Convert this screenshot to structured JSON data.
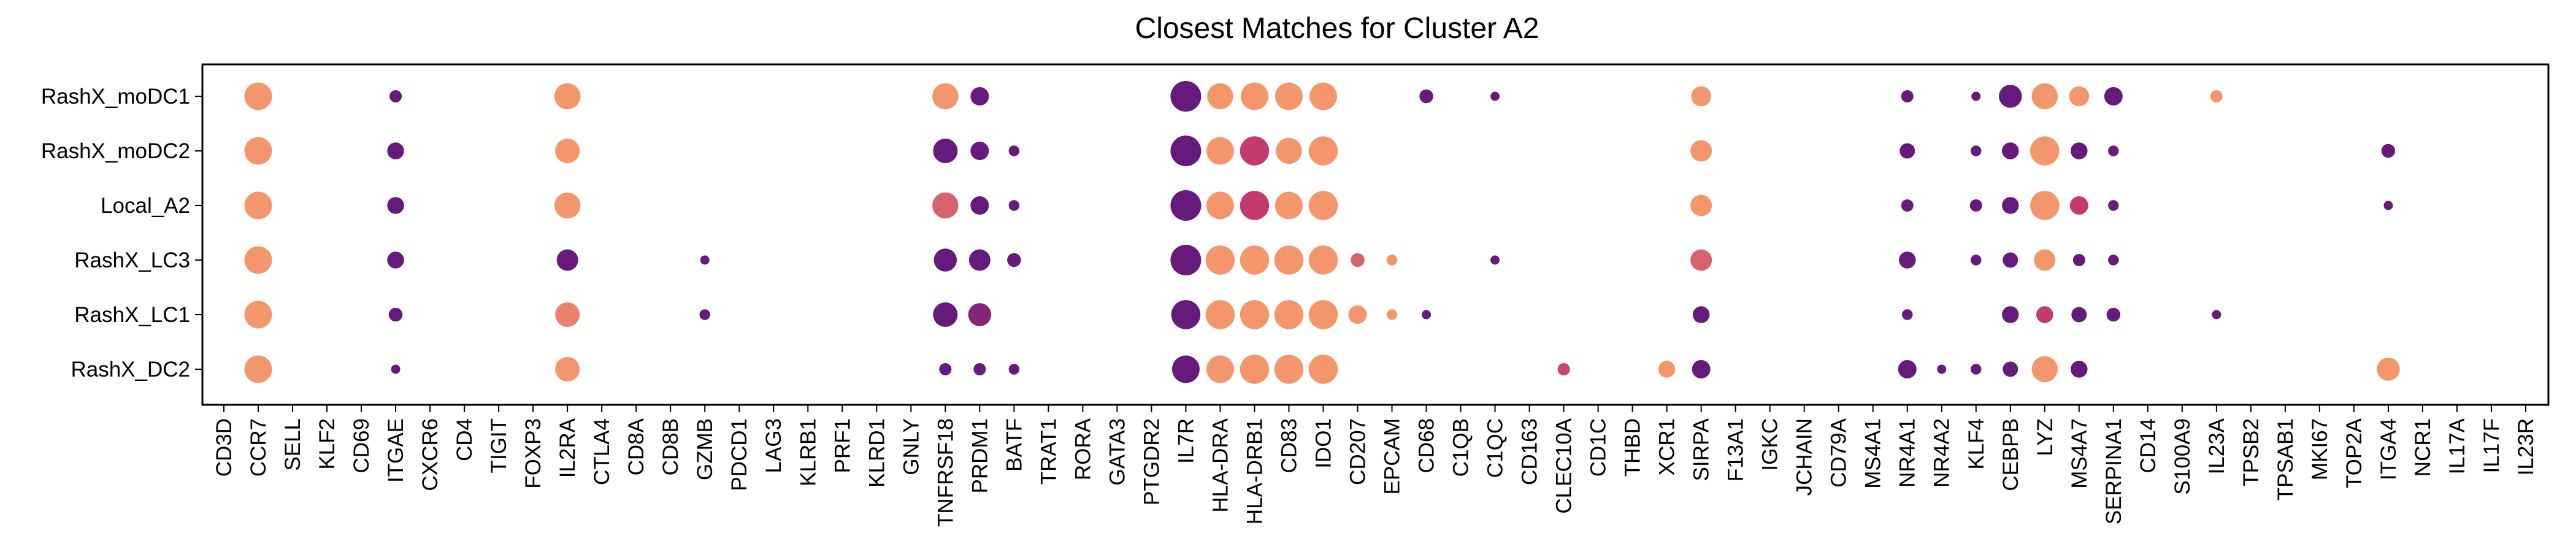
{
  "chart_data": {
    "type": "dotplot",
    "title": "Closest Matches for Cluster A2",
    "xlabel": "",
    "ylabel": "",
    "grid": false,
    "legend": "none",
    "genes": [
      "CD3D",
      "CCR7",
      "SELL",
      "KLF2",
      "CD69",
      "ITGAE",
      "CXCR6",
      "CD4",
      "TIGIT",
      "FOXP3",
      "IL2RA",
      "CTLA4",
      "CD8A",
      "CD8B",
      "GZMB",
      "PDCD1",
      "LAG3",
      "KLRB1",
      "PRF1",
      "KLRD1",
      "GNLY",
      "TNFRSF18",
      "PRDM1",
      "BATF",
      "TRAT1",
      "RORA",
      "GATA3",
      "PTGDR2",
      "IL7R",
      "HLA-DRA",
      "HLA-DRB1",
      "CD83",
      "IDO1",
      "CD207",
      "EPCAM",
      "CD68",
      "C1QB",
      "C1QC",
      "CD163",
      "CLEC10A",
      "CD1C",
      "THBD",
      "XCR1",
      "SIRPA",
      "F13A1",
      "IGKC",
      "JCHAIN",
      "CD79A",
      "MS4A1",
      "NR4A1",
      "NR4A2",
      "KLF4",
      "CEBPB",
      "LYZ",
      "MS4A7",
      "SERPINA1",
      "CD14",
      "S100A9",
      "IL23A",
      "TPSB2",
      "TPSAB1",
      "MKI67",
      "TOP2A",
      "ITGA4",
      "NCR1",
      "IL17A",
      "IL17F",
      "IL23R"
    ],
    "rows": [
      "RashX_moDC1",
      "RashX_moDC2",
      "Local_A2",
      "RashX_LC3",
      "RashX_LC1",
      "RashX_DC2"
    ],
    "color_scale": {
      "low": "#5b167e",
      "mid": "#c33b6e",
      "high": "#f9a06c"
    },
    "points": [
      {
        "row": "RashX_moDC1",
        "gene": "CCR7",
        "size": 0.9,
        "color": 0.95
      },
      {
        "row": "RashX_moDC1",
        "gene": "ITGAE",
        "size": 0.4,
        "color": 0.05
      },
      {
        "row": "RashX_moDC1",
        "gene": "IL2RA",
        "size": 0.85,
        "color": 0.95
      },
      {
        "row": "RashX_moDC1",
        "gene": "TNFRSF18",
        "size": 0.85,
        "color": 0.95
      },
      {
        "row": "RashX_moDC1",
        "gene": "PRDM1",
        "size": 0.6,
        "color": 0.05
      },
      {
        "row": "RashX_moDC1",
        "gene": "IL7R",
        "size": 1.0,
        "color": 0.05
      },
      {
        "row": "RashX_moDC1",
        "gene": "HLA-DRA",
        "size": 0.85,
        "color": 0.95
      },
      {
        "row": "RashX_moDC1",
        "gene": "HLA-DRB1",
        "size": 0.9,
        "color": 0.95
      },
      {
        "row": "RashX_moDC1",
        "gene": "CD83",
        "size": 0.9,
        "color": 0.95
      },
      {
        "row": "RashX_moDC1",
        "gene": "IDO1",
        "size": 0.9,
        "color": 0.95
      },
      {
        "row": "RashX_moDC1",
        "gene": "CD68",
        "size": 0.45,
        "color": 0.05
      },
      {
        "row": "RashX_moDC1",
        "gene": "C1QC",
        "size": 0.3,
        "color": 0.05
      },
      {
        "row": "RashX_moDC1",
        "gene": "SIRPA",
        "size": 0.65,
        "color": 0.95
      },
      {
        "row": "RashX_moDC1",
        "gene": "NR4A1",
        "size": 0.4,
        "color": 0.05
      },
      {
        "row": "RashX_moDC1",
        "gene": "KLF4",
        "size": 0.3,
        "color": 0.05
      },
      {
        "row": "RashX_moDC1",
        "gene": "CEBPB",
        "size": 0.75,
        "color": 0.05
      },
      {
        "row": "RashX_moDC1",
        "gene": "LYZ",
        "size": 0.85,
        "color": 0.95
      },
      {
        "row": "RashX_moDC1",
        "gene": "MS4A7",
        "size": 0.65,
        "color": 0.95
      },
      {
        "row": "RashX_moDC1",
        "gene": "SERPINA1",
        "size": 0.6,
        "color": 0.05
      },
      {
        "row": "RashX_moDC1",
        "gene": "IL23A",
        "size": 0.4,
        "color": 0.95
      },
      {
        "row": "RashX_moDC2",
        "gene": "CCR7",
        "size": 0.9,
        "color": 0.95
      },
      {
        "row": "RashX_moDC2",
        "gene": "ITGAE",
        "size": 0.55,
        "color": 0.05
      },
      {
        "row": "RashX_moDC2",
        "gene": "IL2RA",
        "size": 0.8,
        "color": 0.95
      },
      {
        "row": "RashX_moDC2",
        "gene": "TNFRSF18",
        "size": 0.8,
        "color": 0.05
      },
      {
        "row": "RashX_moDC2",
        "gene": "PRDM1",
        "size": 0.6,
        "color": 0.05
      },
      {
        "row": "RashX_moDC2",
        "gene": "BATF",
        "size": 0.35,
        "color": 0.05
      },
      {
        "row": "RashX_moDC2",
        "gene": "IL7R",
        "size": 1.0,
        "color": 0.05
      },
      {
        "row": "RashX_moDC2",
        "gene": "HLA-DRA",
        "size": 0.9,
        "color": 0.95
      },
      {
        "row": "RashX_moDC2",
        "gene": "HLA-DRB1",
        "size": 0.95,
        "color": 0.5
      },
      {
        "row": "RashX_moDC2",
        "gene": "CD83",
        "size": 0.85,
        "color": 0.95
      },
      {
        "row": "RashX_moDC2",
        "gene": "IDO1",
        "size": 0.95,
        "color": 0.95
      },
      {
        "row": "RashX_moDC2",
        "gene": "SIRPA",
        "size": 0.7,
        "color": 0.95
      },
      {
        "row": "RashX_moDC2",
        "gene": "NR4A1",
        "size": 0.5,
        "color": 0.05
      },
      {
        "row": "RashX_moDC2",
        "gene": "KLF4",
        "size": 0.35,
        "color": 0.05
      },
      {
        "row": "RashX_moDC2",
        "gene": "CEBPB",
        "size": 0.55,
        "color": 0.05
      },
      {
        "row": "RashX_moDC2",
        "gene": "LYZ",
        "size": 0.95,
        "color": 0.95
      },
      {
        "row": "RashX_moDC2",
        "gene": "MS4A7",
        "size": 0.55,
        "color": 0.05
      },
      {
        "row": "RashX_moDC2",
        "gene": "SERPINA1",
        "size": 0.35,
        "color": 0.05
      },
      {
        "row": "RashX_moDC2",
        "gene": "ITGA4",
        "size": 0.45,
        "color": 0.05
      },
      {
        "row": "Local_A2",
        "gene": "CCR7",
        "size": 0.9,
        "color": 0.95
      },
      {
        "row": "Local_A2",
        "gene": "ITGAE",
        "size": 0.55,
        "color": 0.05
      },
      {
        "row": "Local_A2",
        "gene": "IL2RA",
        "size": 0.85,
        "color": 0.95
      },
      {
        "row": "Local_A2",
        "gene": "TNFRSF18",
        "size": 0.85,
        "color": 0.7
      },
      {
        "row": "Local_A2",
        "gene": "PRDM1",
        "size": 0.6,
        "color": 0.05
      },
      {
        "row": "Local_A2",
        "gene": "BATF",
        "size": 0.35,
        "color": 0.05
      },
      {
        "row": "Local_A2",
        "gene": "IL7R",
        "size": 1.0,
        "color": 0.05
      },
      {
        "row": "Local_A2",
        "gene": "HLA-DRA",
        "size": 0.9,
        "color": 0.95
      },
      {
        "row": "Local_A2",
        "gene": "HLA-DRB1",
        "size": 0.95,
        "color": 0.5
      },
      {
        "row": "Local_A2",
        "gene": "CD83",
        "size": 0.9,
        "color": 0.95
      },
      {
        "row": "Local_A2",
        "gene": "IDO1",
        "size": 0.95,
        "color": 0.95
      },
      {
        "row": "Local_A2",
        "gene": "SIRPA",
        "size": 0.7,
        "color": 0.95
      },
      {
        "row": "Local_A2",
        "gene": "NR4A1",
        "size": 0.4,
        "color": 0.05
      },
      {
        "row": "Local_A2",
        "gene": "KLF4",
        "size": 0.4,
        "color": 0.05
      },
      {
        "row": "Local_A2",
        "gene": "CEBPB",
        "size": 0.55,
        "color": 0.05
      },
      {
        "row": "Local_A2",
        "gene": "LYZ",
        "size": 0.95,
        "color": 0.95
      },
      {
        "row": "Local_A2",
        "gene": "MS4A7",
        "size": 0.6,
        "color": 0.5
      },
      {
        "row": "Local_A2",
        "gene": "SERPINA1",
        "size": 0.35,
        "color": 0.05
      },
      {
        "row": "Local_A2",
        "gene": "ITGA4",
        "size": 0.3,
        "color": 0.05
      },
      {
        "row": "RashX_LC3",
        "gene": "CCR7",
        "size": 0.9,
        "color": 0.95
      },
      {
        "row": "RashX_LC3",
        "gene": "ITGAE",
        "size": 0.55,
        "color": 0.05
      },
      {
        "row": "RashX_LC3",
        "gene": "IL2RA",
        "size": 0.7,
        "color": 0.05
      },
      {
        "row": "RashX_LC3",
        "gene": "GZMB",
        "size": 0.3,
        "color": 0.05
      },
      {
        "row": "RashX_LC3",
        "gene": "TNFRSF18",
        "size": 0.75,
        "color": 0.05
      },
      {
        "row": "RashX_LC3",
        "gene": "PRDM1",
        "size": 0.7,
        "color": 0.05
      },
      {
        "row": "RashX_LC3",
        "gene": "BATF",
        "size": 0.45,
        "color": 0.05
      },
      {
        "row": "RashX_LC3",
        "gene": "IL7R",
        "size": 1.0,
        "color": 0.05
      },
      {
        "row": "RashX_LC3",
        "gene": "HLA-DRA",
        "size": 0.95,
        "color": 0.95
      },
      {
        "row": "RashX_LC3",
        "gene": "HLA-DRB1",
        "size": 0.95,
        "color": 0.95
      },
      {
        "row": "RashX_LC3",
        "gene": "CD83",
        "size": 0.95,
        "color": 0.95
      },
      {
        "row": "RashX_LC3",
        "gene": "IDO1",
        "size": 0.95,
        "color": 0.95
      },
      {
        "row": "RashX_LC3",
        "gene": "CD207",
        "size": 0.45,
        "color": 0.7
      },
      {
        "row": "RashX_LC3",
        "gene": "EPCAM",
        "size": 0.35,
        "color": 0.95
      },
      {
        "row": "RashX_LC3",
        "gene": "C1QC",
        "size": 0.3,
        "color": 0.05
      },
      {
        "row": "RashX_LC3",
        "gene": "SIRPA",
        "size": 0.7,
        "color": 0.7
      },
      {
        "row": "RashX_LC3",
        "gene": "NR4A1",
        "size": 0.55,
        "color": 0.05
      },
      {
        "row": "RashX_LC3",
        "gene": "KLF4",
        "size": 0.35,
        "color": 0.05
      },
      {
        "row": "RashX_LC3",
        "gene": "CEBPB",
        "size": 0.5,
        "color": 0.05
      },
      {
        "row": "RashX_LC3",
        "gene": "LYZ",
        "size": 0.7,
        "color": 0.95
      },
      {
        "row": "RashX_LC3",
        "gene": "MS4A7",
        "size": 0.4,
        "color": 0.05
      },
      {
        "row": "RashX_LC3",
        "gene": "SERPINA1",
        "size": 0.35,
        "color": 0.05
      },
      {
        "row": "RashX_LC1",
        "gene": "CCR7",
        "size": 0.9,
        "color": 0.95
      },
      {
        "row": "RashX_LC1",
        "gene": "ITGAE",
        "size": 0.45,
        "color": 0.05
      },
      {
        "row": "RashX_LC1",
        "gene": "IL2RA",
        "size": 0.8,
        "color": 0.85
      },
      {
        "row": "RashX_LC1",
        "gene": "GZMB",
        "size": 0.35,
        "color": 0.05
      },
      {
        "row": "RashX_LC1",
        "gene": "TNFRSF18",
        "size": 0.8,
        "color": 0.05
      },
      {
        "row": "RashX_LC1",
        "gene": "PRDM1",
        "size": 0.75,
        "color": 0.2
      },
      {
        "row": "RashX_LC1",
        "gene": "IL7R",
        "size": 0.95,
        "color": 0.05
      },
      {
        "row": "RashX_LC1",
        "gene": "HLA-DRA",
        "size": 0.95,
        "color": 0.95
      },
      {
        "row": "RashX_LC1",
        "gene": "HLA-DRB1",
        "size": 0.95,
        "color": 0.95
      },
      {
        "row": "RashX_LC1",
        "gene": "CD83",
        "size": 0.95,
        "color": 0.95
      },
      {
        "row": "RashX_LC1",
        "gene": "IDO1",
        "size": 0.95,
        "color": 0.95
      },
      {
        "row": "RashX_LC1",
        "gene": "CD207",
        "size": 0.6,
        "color": 0.95
      },
      {
        "row": "RashX_LC1",
        "gene": "EPCAM",
        "size": 0.35,
        "color": 0.95
      },
      {
        "row": "RashX_LC1",
        "gene": "CD68",
        "size": 0.3,
        "color": 0.05
      },
      {
        "row": "RashX_LC1",
        "gene": "SIRPA",
        "size": 0.55,
        "color": 0.05
      },
      {
        "row": "RashX_LC1",
        "gene": "NR4A1",
        "size": 0.35,
        "color": 0.05
      },
      {
        "row": "RashX_LC1",
        "gene": "CEBPB",
        "size": 0.55,
        "color": 0.05
      },
      {
        "row": "RashX_LC1",
        "gene": "LYZ",
        "size": 0.55,
        "color": 0.5
      },
      {
        "row": "RashX_LC1",
        "gene": "MS4A7",
        "size": 0.5,
        "color": 0.05
      },
      {
        "row": "RashX_LC1",
        "gene": "SERPINA1",
        "size": 0.45,
        "color": 0.05
      },
      {
        "row": "RashX_LC1",
        "gene": "IL23A",
        "size": 0.3,
        "color": 0.05
      },
      {
        "row": "RashX_DC2",
        "gene": "CCR7",
        "size": 0.9,
        "color": 0.95
      },
      {
        "row": "RashX_DC2",
        "gene": "ITGAE",
        "size": 0.3,
        "color": 0.05
      },
      {
        "row": "RashX_DC2",
        "gene": "IL2RA",
        "size": 0.8,
        "color": 0.95
      },
      {
        "row": "RashX_DC2",
        "gene": "TNFRSF18",
        "size": 0.4,
        "color": 0.05
      },
      {
        "row": "RashX_DC2",
        "gene": "PRDM1",
        "size": 0.4,
        "color": 0.05
      },
      {
        "row": "RashX_DC2",
        "gene": "BATF",
        "size": 0.35,
        "color": 0.05
      },
      {
        "row": "RashX_DC2",
        "gene": "IL7R",
        "size": 0.9,
        "color": 0.05
      },
      {
        "row": "RashX_DC2",
        "gene": "HLA-DRA",
        "size": 0.9,
        "color": 0.95
      },
      {
        "row": "RashX_DC2",
        "gene": "HLA-DRB1",
        "size": 0.95,
        "color": 0.95
      },
      {
        "row": "RashX_DC2",
        "gene": "CD83",
        "size": 0.95,
        "color": 0.95
      },
      {
        "row": "RashX_DC2",
        "gene": "IDO1",
        "size": 0.95,
        "color": 0.95
      },
      {
        "row": "RashX_DC2",
        "gene": "CLEC10A",
        "size": 0.4,
        "color": 0.55
      },
      {
        "row": "RashX_DC2",
        "gene": "XCR1",
        "size": 0.55,
        "color": 0.95
      },
      {
        "row": "RashX_DC2",
        "gene": "SIRPA",
        "size": 0.6,
        "color": 0.05
      },
      {
        "row": "RashX_DC2",
        "gene": "NR4A1",
        "size": 0.6,
        "color": 0.05
      },
      {
        "row": "RashX_DC2",
        "gene": "NR4A2",
        "size": 0.3,
        "color": 0.05
      },
      {
        "row": "RashX_DC2",
        "gene": "KLF4",
        "size": 0.35,
        "color": 0.05
      },
      {
        "row": "RashX_DC2",
        "gene": "CEBPB",
        "size": 0.5,
        "color": 0.05
      },
      {
        "row": "RashX_DC2",
        "gene": "LYZ",
        "size": 0.85,
        "color": 0.95
      },
      {
        "row": "RashX_DC2",
        "gene": "MS4A7",
        "size": 0.55,
        "color": 0.05
      },
      {
        "row": "RashX_DC2",
        "gene": "ITGA4",
        "size": 0.75,
        "color": 0.95
      }
    ]
  }
}
